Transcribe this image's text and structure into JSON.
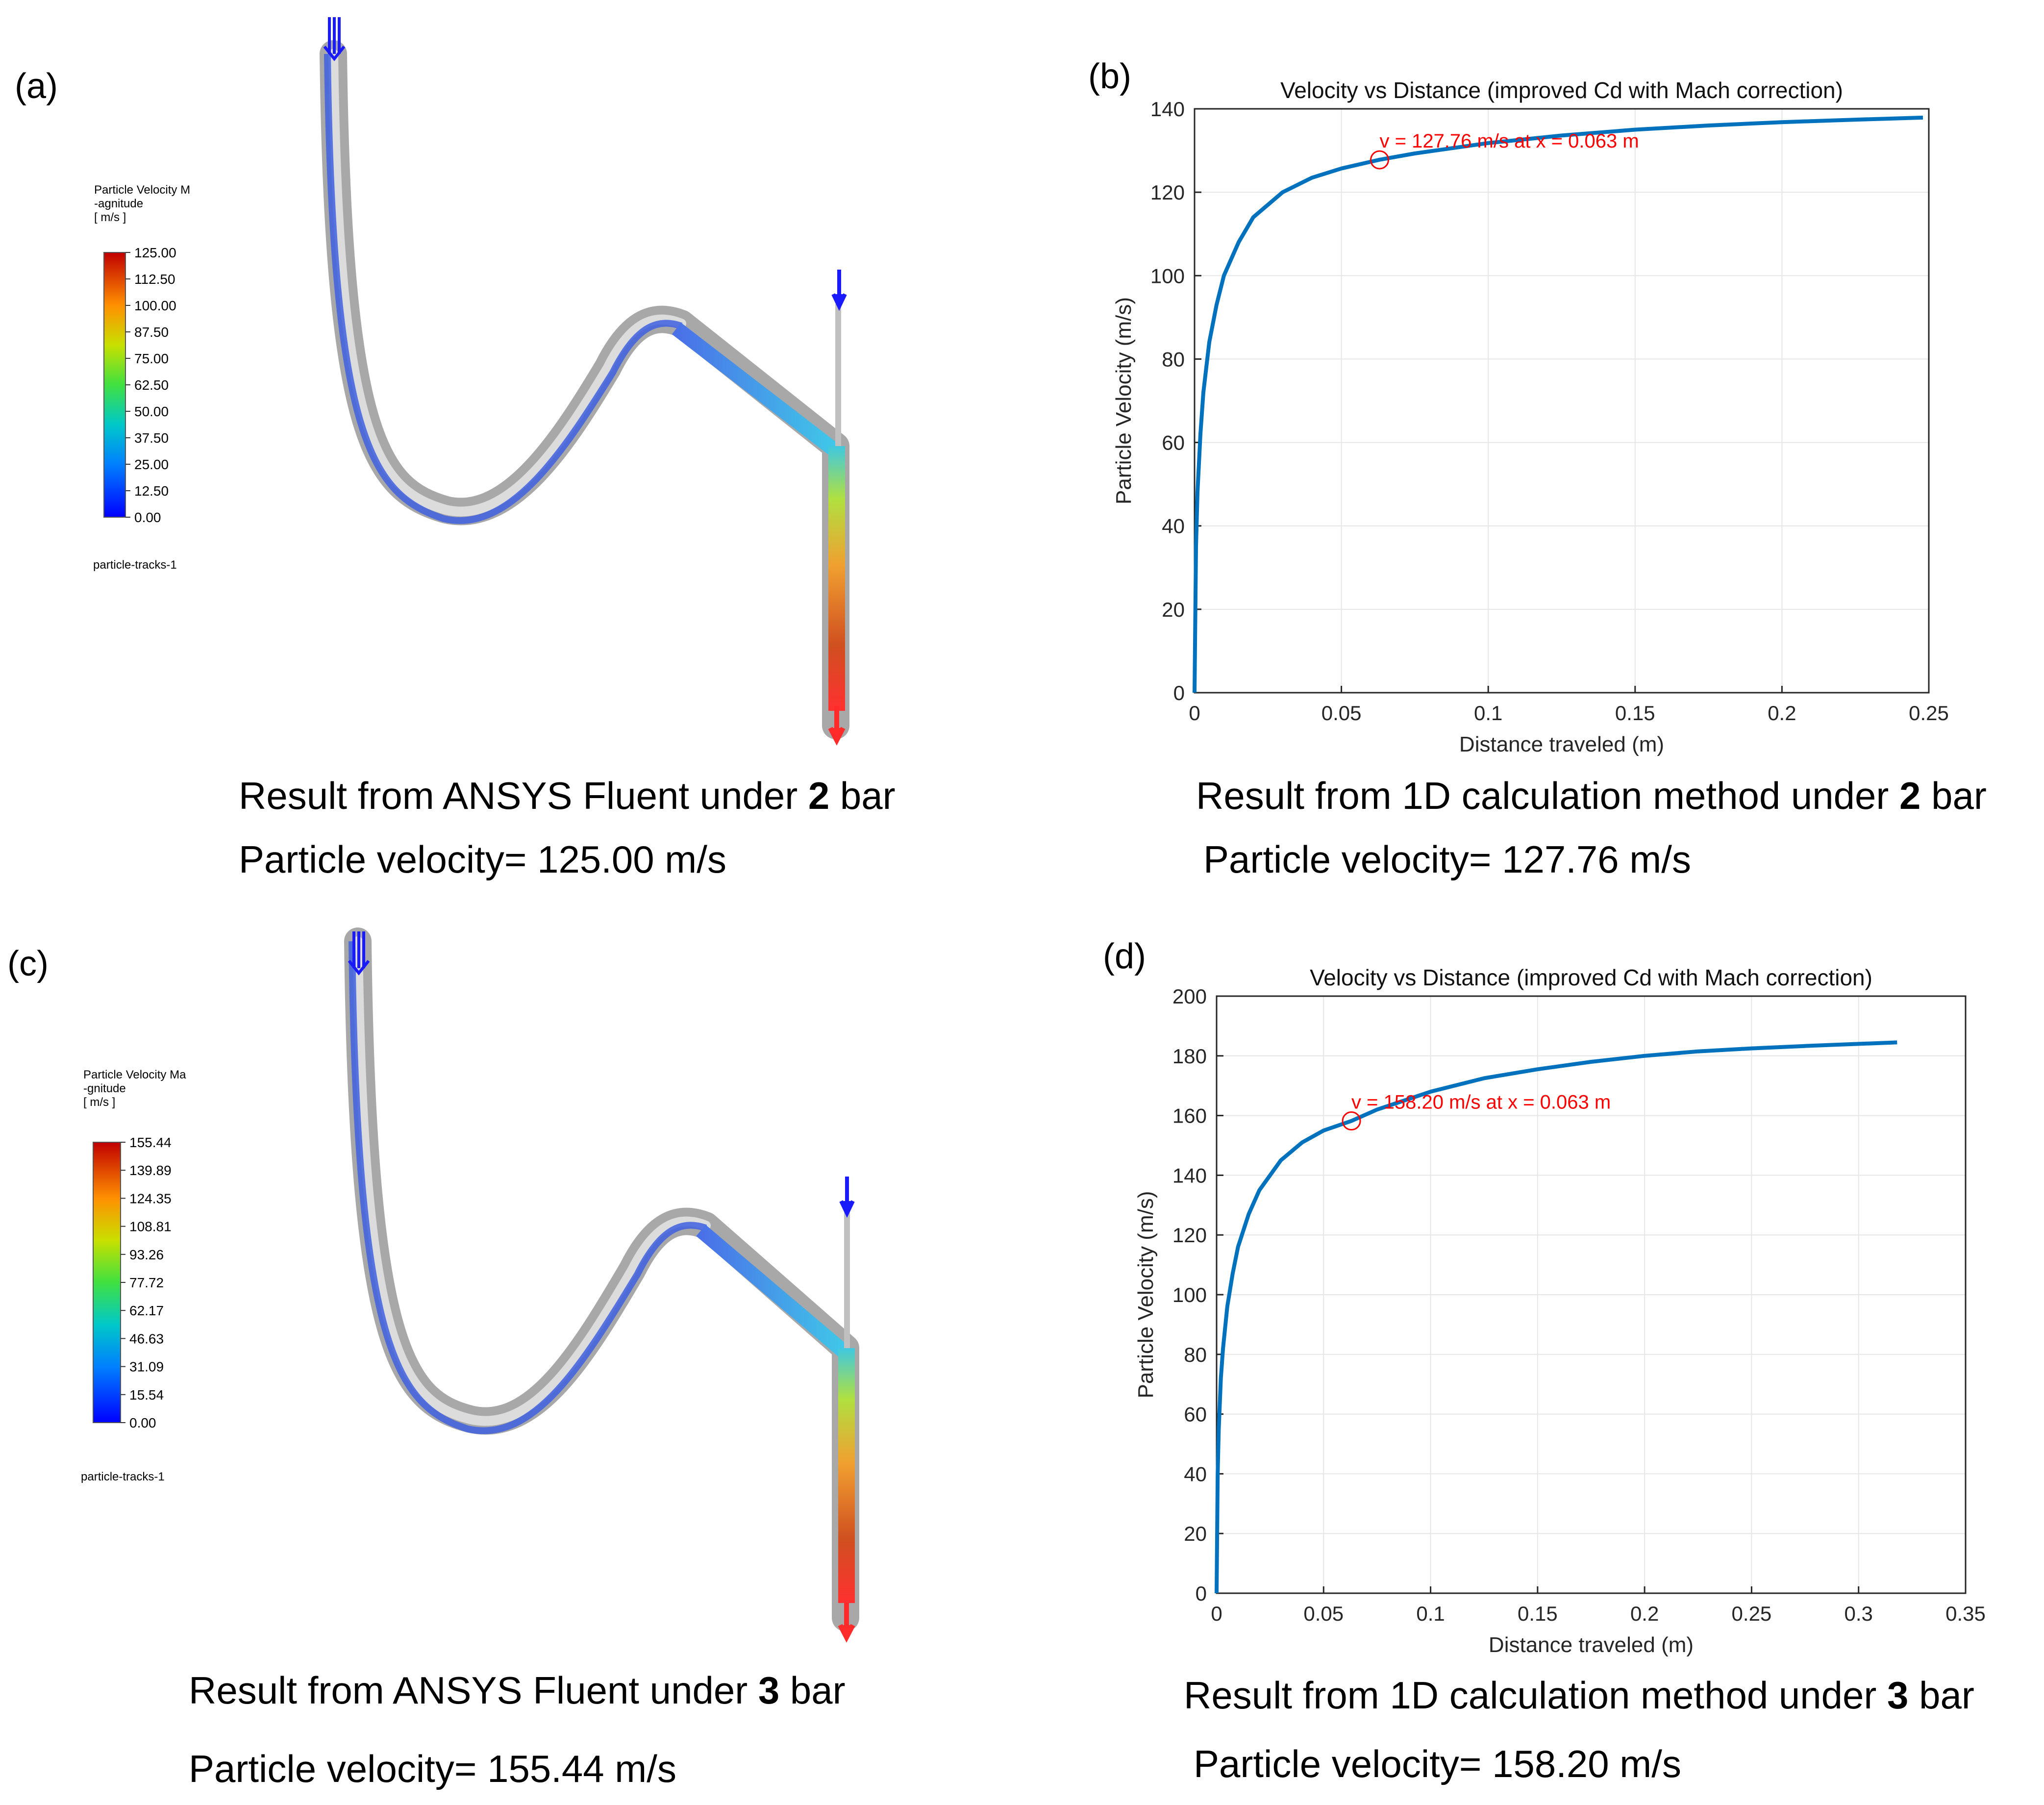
{
  "panels": {
    "a": {
      "label": "(a)",
      "legend_title_lines": [
        "Particle Velocity M",
        "-agnitude",
        "[ m/s ]"
      ],
      "legend_ticks": [
        "125.00",
        "112.50",
        "100.00",
        "87.50",
        "75.00",
        "62.50",
        "50.00",
        "37.50",
        "25.00",
        "12.50",
        "0.00"
      ],
      "track_label": "particle-tracks-1",
      "caption_line1": {
        "prefix": "Result from ANSYS Fluent under ",
        "bold": "2",
        "suffix": " bar"
      },
      "caption_line2": "Particle velocity= 125.00 m/s"
    },
    "b": {
      "label": "(b)",
      "caption_line1": {
        "prefix": "Result from 1D calculation method under ",
        "bold": "2",
        "suffix": " bar"
      },
      "caption_line2": "Particle velocity= 127.76 m/s"
    },
    "c": {
      "label": "(c)",
      "legend_title_lines": [
        "Particle Velocity Ma",
        "-gnitude",
        "[ m/s ]"
      ],
      "legend_ticks": [
        "155.44",
        "139.89",
        "124.35",
        "108.81",
        "93.26",
        "77.72",
        "62.17",
        "46.63",
        "31.09",
        "15.54",
        "0.00"
      ],
      "track_label": "particle-tracks-1",
      "caption_line1": {
        "prefix": "Result from ANSYS Fluent under ",
        "bold": "3",
        "suffix": " bar"
      },
      "caption_line2": "Particle velocity= 155.44 m/s"
    },
    "d": {
      "label": "(d)",
      "caption_line1": {
        "prefix": "Result from 1D calculation method under ",
        "bold": "3",
        "suffix": " bar"
      },
      "caption_line2": "Particle velocity= 158.20 m/s"
    }
  },
  "colors": {
    "curve": "#0072BD",
    "annotation": "#ff0000",
    "grid": "#e6e6e6",
    "pipe": "#b0b0b0",
    "arrow_in": "#1a1aff",
    "arrow_out": "#ff2a2a"
  },
  "chart_data": [
    {
      "panel": "b",
      "type": "line",
      "title": "Velocity vs Distance (improved Cd with Mach correction)",
      "xlabel": "Distance traveled (m)",
      "ylabel": "Particle Velocity (m/s)",
      "xlim": [
        0,
        0.25
      ],
      "ylim": [
        0,
        140
      ],
      "xticks": [
        0,
        0.05,
        0.1,
        0.15,
        0.2,
        0.25
      ],
      "xtick_labels": [
        "0",
        "0.05",
        "0.1",
        "0.15",
        "0.2",
        "0.25"
      ],
      "yticks": [
        0,
        20,
        40,
        60,
        80,
        100,
        120,
        140
      ],
      "ytick_labels": [
        "0",
        "20",
        "40",
        "60",
        "80",
        "100",
        "120",
        "140"
      ],
      "grid": true,
      "series": [
        {
          "x": [
            0,
            0.0005,
            0.001,
            0.002,
            0.003,
            0.005,
            0.0075,
            0.01,
            0.015,
            0.02,
            0.03,
            0.04,
            0.05,
            0.063,
            0.075,
            0.1,
            0.125,
            0.15,
            0.175,
            0.2,
            0.225,
            0.248
          ],
          "y": [
            0,
            35,
            48,
            62,
            72,
            84,
            93,
            100,
            108,
            114,
            120,
            123.5,
            125.7,
            127.8,
            129.3,
            131.8,
            133.6,
            135.0,
            136.0,
            136.8,
            137.4,
            137.9
          ]
        }
      ],
      "annotation": {
        "text": "v = 127.76 m/s at x = 0.063 m",
        "x": 0.063,
        "y": 127.76
      }
    },
    {
      "panel": "d",
      "type": "line",
      "title": "Velocity vs Distance (improved Cd with Mach correction)",
      "xlabel": "Distance traveled (m)",
      "ylabel": "Particle Velocity (m/s)",
      "xlim": [
        0,
        0.35
      ],
      "ylim": [
        0,
        200
      ],
      "xticks": [
        0,
        0.05,
        0.1,
        0.15,
        0.2,
        0.25,
        0.3,
        0.35
      ],
      "xtick_labels": [
        "0",
        "0.05",
        "0.1",
        "0.15",
        "0.2",
        "0.25",
        "0.3",
        "0.35"
      ],
      "yticks": [
        0,
        20,
        40,
        60,
        80,
        100,
        120,
        140,
        160,
        180,
        200
      ],
      "ytick_labels": [
        "0",
        "20",
        "40",
        "60",
        "80",
        "100",
        "120",
        "140",
        "160",
        "180",
        "200"
      ],
      "grid": true,
      "series": [
        {
          "x": [
            0,
            0.0005,
            0.001,
            0.002,
            0.003,
            0.005,
            0.0075,
            0.01,
            0.015,
            0.02,
            0.03,
            0.04,
            0.05,
            0.063,
            0.075,
            0.1,
            0.125,
            0.15,
            0.175,
            0.2,
            0.225,
            0.25,
            0.275,
            0.3,
            0.318
          ],
          "y": [
            0,
            40,
            55,
            72,
            82,
            96,
            107,
            116,
            127,
            135,
            145,
            151,
            155,
            158.2,
            162,
            168,
            172.5,
            175.5,
            178,
            180,
            181.5,
            182.5,
            183.3,
            184,
            184.5
          ]
        }
      ],
      "annotation": {
        "text": "v = 158.20 m/s at x = 0.063 m",
        "x": 0.063,
        "y": 158.2
      }
    }
  ]
}
